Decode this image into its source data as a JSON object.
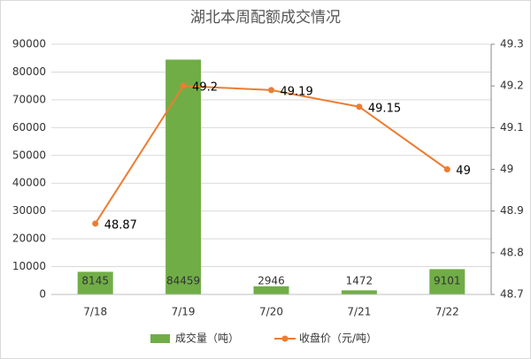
{
  "chart_data": {
    "type": "bar",
    "title": "湖北本周配额成交情况",
    "categories": [
      "7/18",
      "7/19",
      "7/20",
      "7/21",
      "7/22"
    ],
    "series": [
      {
        "name": "成交量（吨）",
        "type": "bar",
        "color": "#70ad47",
        "values": [
          8145,
          84459,
          2946,
          1472,
          9101
        ]
      },
      {
        "name": "收盘价（元/吨）",
        "type": "line",
        "axis": "y2",
        "color": "#ed7d31",
        "values": [
          48.87,
          49.2,
          49.19,
          49.15,
          49
        ]
      }
    ],
    "ylim": [
      0,
      90000
    ],
    "yticks": [
      0,
      10000,
      20000,
      30000,
      40000,
      50000,
      60000,
      70000,
      80000,
      90000
    ],
    "y2lim": [
      48.7,
      49.3
    ],
    "y2ticks": [
      48.7,
      48.8,
      48.9,
      49,
      49.1,
      49.2,
      49.3
    ],
    "grid": true,
    "legend": "bottom"
  }
}
